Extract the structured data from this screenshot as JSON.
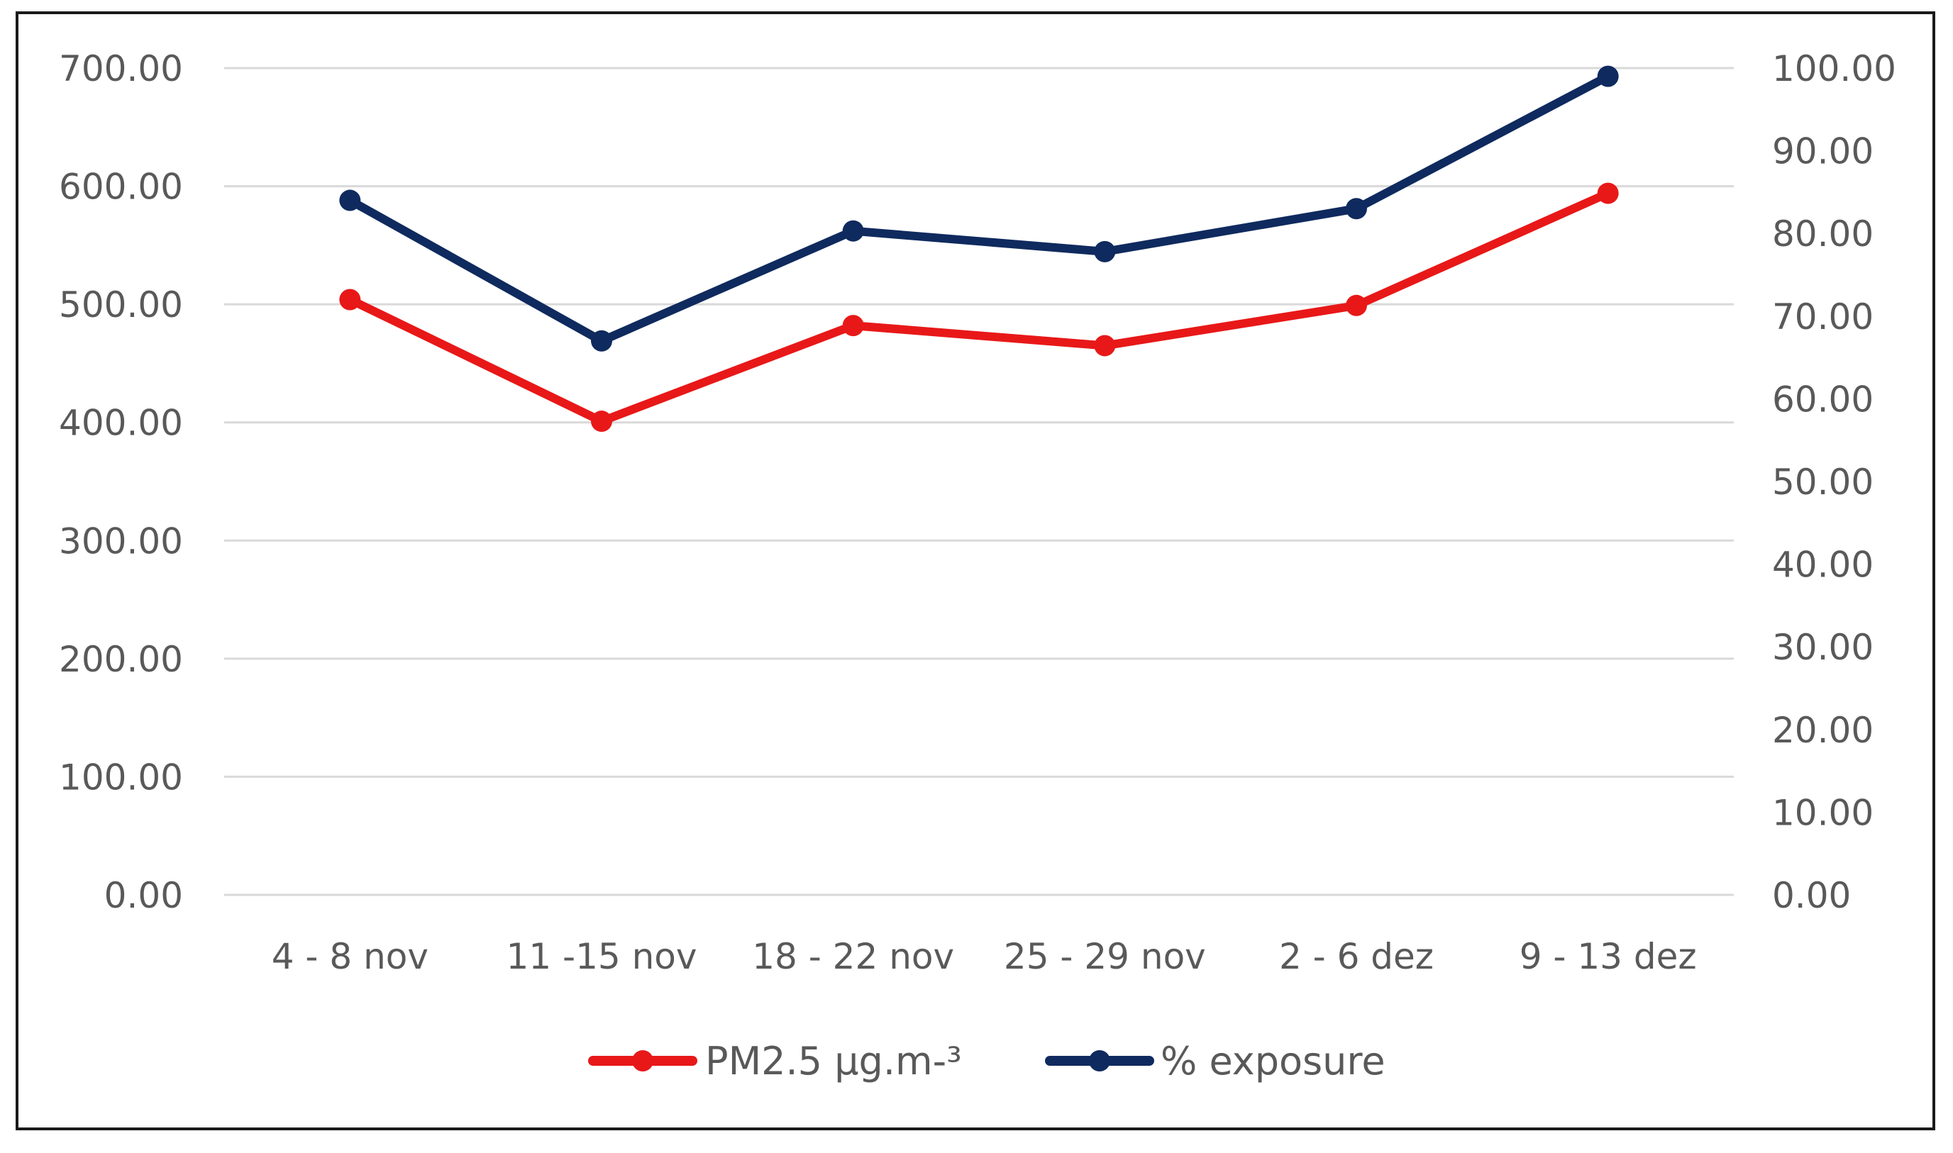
{
  "chart_data": {
    "type": "line",
    "title": "",
    "xlabel": "",
    "ylabel": "",
    "categories": [
      "4 - 8 nov",
      "11 -15 nov",
      "18 - 22 nov",
      "25 - 29 nov",
      "2 - 6 dez",
      "9 - 13 dez"
    ],
    "series": [
      {
        "name": "PM2.5  µg.m-³",
        "axis": "left",
        "color": "#e81818",
        "values": [
          504,
          401,
          482,
          465,
          499,
          594
        ]
      },
      {
        "name": "% exposure",
        "axis": "right",
        "color": "#0f2a5e",
        "values": [
          84.0,
          67.0,
          80.3,
          77.8,
          83.0,
          99.0
        ]
      }
    ],
    "y_left": {
      "ylim": [
        0,
        700
      ],
      "ticks": [
        "0.00",
        "100.00",
        "200.00",
        "300.00",
        "400.00",
        "500.00",
        "600.00",
        "700.00"
      ]
    },
    "y_right": {
      "ylim": [
        0,
        100
      ],
      "ticks": [
        "0.00",
        "10.00",
        "20.00",
        "30.00",
        "40.00",
        "50.00",
        "60.00",
        "70.00",
        "80.00",
        "90.00",
        "100.00"
      ]
    },
    "grid": true,
    "legend_position": "bottom"
  }
}
